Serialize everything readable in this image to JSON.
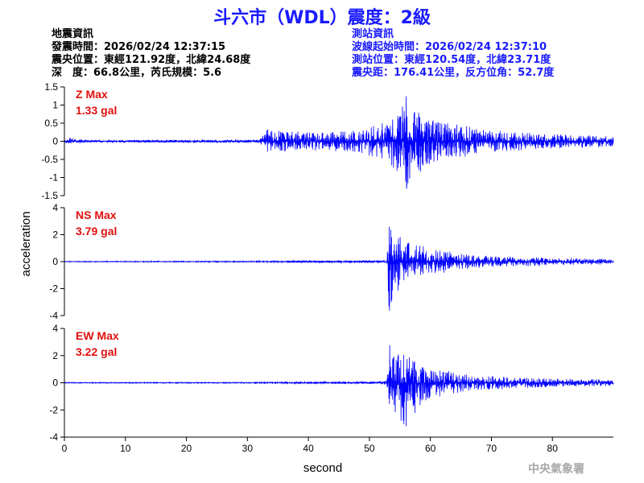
{
  "title": "斗六市（WDL）震度：2級",
  "event_info": {
    "heading": "地震資訊",
    "origin_time": "發震時間：2026/02/24 12:37:15",
    "epicenter": "震央位置：東經121.92度，北緯24.68度",
    "depth_magnitude": "深　度：66.8公里，芮氏規模：5.6"
  },
  "station_info": {
    "heading": "測站資訊",
    "wave_start": "波線起始時間：2026/02/24 12:37:10",
    "location": "測站位置：東經120.54度，北緯23.71度",
    "distance_azimuth": "震央距：176.41公里，反方位角：52.7度"
  },
  "credit": "中央氣象署",
  "colors": {
    "title": "#1a1aff",
    "trace": "#0000ff",
    "max_label": "#e01010",
    "axis": "#000000",
    "credit": "#a8a8a8"
  },
  "chart_data": {
    "type": "line",
    "xlabel": "second",
    "ylabel": "acceleration",
    "xlim": [
      0,
      90
    ],
    "x_ticks": [
      0,
      10,
      20,
      30,
      40,
      50,
      60,
      70,
      80
    ],
    "panels": [
      {
        "name": "Z",
        "max_label": "Z Max",
        "max_value": "1.33 gal",
        "ylim": [
          -1.5,
          1.5
        ],
        "y_ticks": [
          1.5,
          1,
          0.5,
          0,
          -0.5,
          -1,
          -1.5
        ],
        "y_tick_labels": [
          "1.5",
          "1",
          "0.5",
          "0",
          "-0.5",
          "-1",
          "-1.5"
        ],
        "envelope": {
          "t": [
            0,
            1,
            2,
            5,
            32,
            33,
            40,
            48,
            50,
            52,
            54,
            55,
            56,
            57,
            58,
            60,
            65,
            70,
            80,
            90
          ],
          "upper": [
            0.02,
            0.1,
            0.06,
            0.03,
            0.05,
            0.35,
            0.25,
            0.3,
            0.4,
            0.5,
            0.7,
            0.9,
            1.25,
            1.0,
            0.9,
            0.6,
            0.45,
            0.3,
            0.2,
            0.15
          ],
          "lower": [
            -0.02,
            -0.1,
            -0.06,
            -0.03,
            -0.05,
            -0.3,
            -0.25,
            -0.3,
            -0.4,
            -0.5,
            -0.8,
            -1.1,
            -1.33,
            -1.1,
            -1.0,
            -0.6,
            -0.45,
            -0.3,
            -0.2,
            -0.15
          ]
        }
      },
      {
        "name": "NS",
        "max_label": "NS Max",
        "max_value": "3.79 gal",
        "ylim": [
          -4,
          4
        ],
        "y_ticks": [
          4,
          2,
          0,
          -2,
          -4
        ],
        "y_tick_labels": [
          "4",
          "2",
          "0",
          "-2",
          "-4"
        ],
        "envelope": {
          "t": [
            0,
            30,
            40,
            50,
            52.8,
            53.2,
            54,
            55,
            57,
            60,
            65,
            70,
            80,
            90
          ],
          "upper": [
            0.03,
            0.04,
            0.08,
            0.1,
            0.15,
            2.6,
            2.3,
            2.0,
            1.5,
            1.0,
            0.6,
            0.4,
            0.3,
            0.2
          ],
          "lower": [
            -0.03,
            -0.04,
            -0.08,
            -0.1,
            -0.15,
            -3.79,
            -2.5,
            -2.0,
            -1.5,
            -1.0,
            -0.6,
            -0.4,
            -0.3,
            -0.2
          ]
        }
      },
      {
        "name": "EW",
        "max_label": "EW Max",
        "max_value": "3.22 gal",
        "ylim": [
          -4,
          4
        ],
        "y_ticks": [
          4,
          2,
          0,
          -2,
          -4
        ],
        "y_tick_labels": [
          "4",
          "2",
          "0",
          "-2",
          "-4"
        ],
        "envelope": {
          "t": [
            0,
            30,
            40,
            50,
            52.8,
            53.3,
            54,
            55,
            56,
            58,
            60,
            65,
            70,
            80,
            90
          ],
          "upper": [
            0.03,
            0.04,
            0.08,
            0.1,
            0.15,
            2.8,
            2.3,
            2.2,
            2.1,
            1.5,
            1.1,
            0.7,
            0.5,
            0.3,
            0.25
          ],
          "lower": [
            -0.03,
            -0.04,
            -0.08,
            -0.1,
            -0.15,
            -2.6,
            -2.5,
            -2.8,
            -3.22,
            -2.0,
            -1.2,
            -0.7,
            -0.5,
            -0.3,
            -0.25
          ]
        }
      }
    ]
  }
}
